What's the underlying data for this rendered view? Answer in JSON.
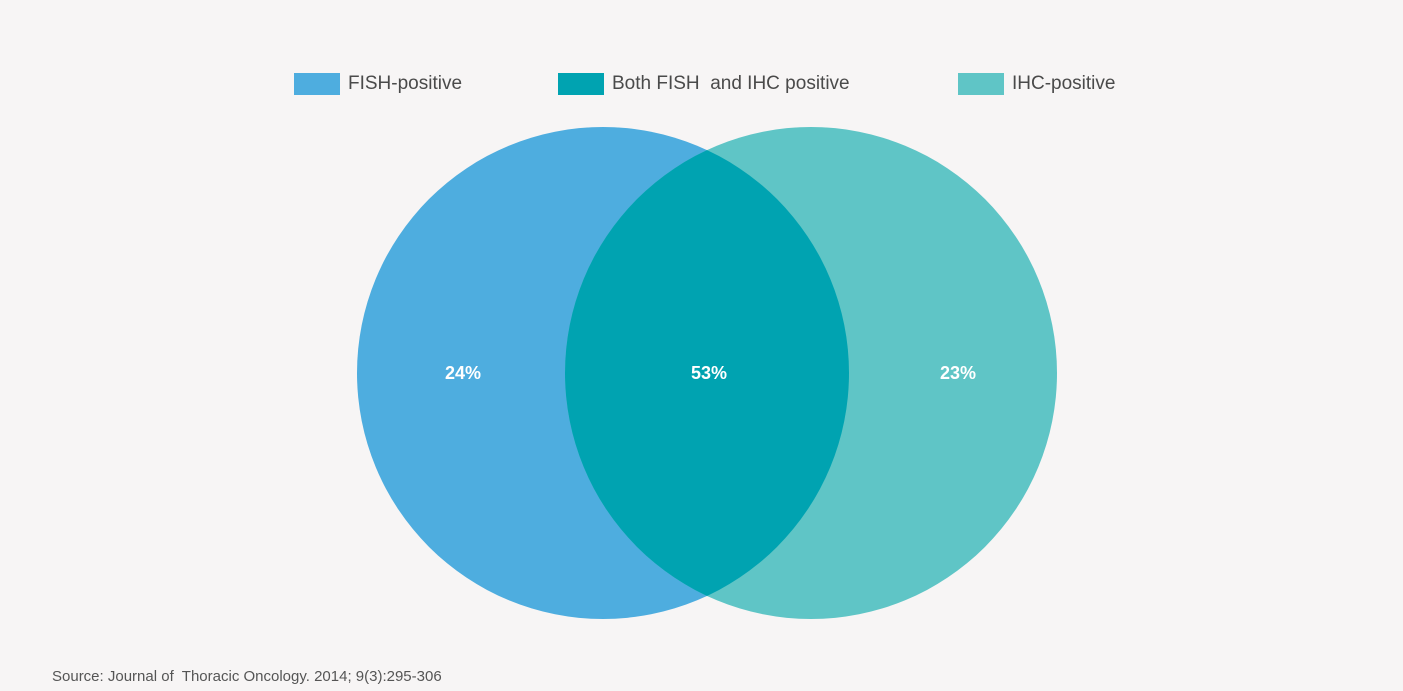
{
  "legend": {
    "items": [
      {
        "label": "FISH-positive",
        "color": "#4eaddf"
      },
      {
        "label": "Both FISH  and IHC positive",
        "color": "#00a3b1"
      },
      {
        "label": "IHC-positive",
        "color": "#5fc5c6"
      }
    ]
  },
  "venn": {
    "sets": [
      {
        "label": "FISH-positive",
        "color": "#4eaddf"
      },
      {
        "label": "IHC-positive",
        "color": "#5fc5c6"
      }
    ],
    "intersection_color": "#00a3b1",
    "regions": {
      "fish_only": "24%",
      "both": "53%",
      "ihc_only": "23%"
    }
  },
  "source": "Source: Journal of  Thoracic Oncology. 2014; 9(3):295-306"
}
